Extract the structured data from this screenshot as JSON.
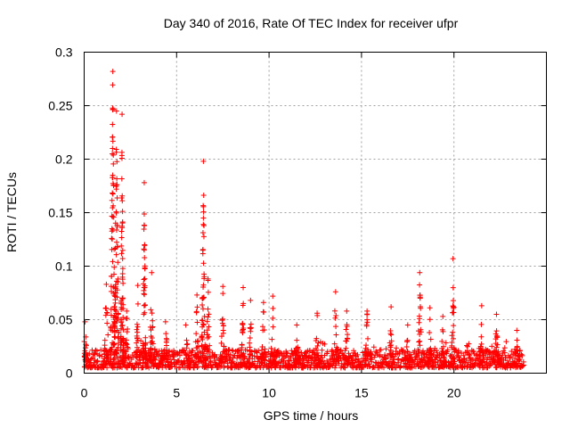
{
  "chart_data": {
    "type": "scatter",
    "title": "Day 340 of 2016, Rate Of TEC Index for receiver ufpr",
    "xlabel": "GPS time / hours",
    "ylabel": "ROTI / TECUs",
    "xlim": [
      0,
      25
    ],
    "ylim": [
      0,
      0.3
    ],
    "xticks": [
      0,
      5,
      10,
      15,
      20
    ],
    "xtick_labels": [
      "0",
      "5",
      "10",
      "15",
      "20"
    ],
    "yticks": [
      0,
      0.05,
      0.1,
      0.15,
      0.2,
      0.25,
      0.3
    ],
    "ytick_labels": [
      "0",
      "0.05",
      "0.1",
      "0.15",
      "0.2",
      "0.25",
      "0.3"
    ],
    "grid": true,
    "marker": "+",
    "series": [
      {
        "name": "ROTI",
        "color": "#ff0000",
        "baseline": {
          "x_start": 0.0,
          "x_end": 23.8,
          "step": 0.05,
          "min": 0.005,
          "max": 0.022
        },
        "bursts": [
          {
            "x": 0.05,
            "width": 0.15,
            "peak": 0.048
          },
          {
            "x": 1.2,
            "width": 0.15,
            "peak": 0.083
          },
          {
            "x": 1.55,
            "width": 0.12,
            "peak": 0.282
          },
          {
            "x": 1.75,
            "width": 0.12,
            "peak": 0.245
          },
          {
            "x": 2.05,
            "width": 0.08,
            "peak": 0.242
          },
          {
            "x": 2.3,
            "width": 0.15,
            "peak": 0.058
          },
          {
            "x": 2.9,
            "width": 0.12,
            "peak": 0.082
          },
          {
            "x": 3.25,
            "width": 0.08,
            "peak": 0.178
          },
          {
            "x": 3.65,
            "width": 0.12,
            "peak": 0.094
          },
          {
            "x": 4.4,
            "width": 0.15,
            "peak": 0.048
          },
          {
            "x": 5.5,
            "width": 0.2,
            "peak": 0.045
          },
          {
            "x": 6.1,
            "width": 0.12,
            "peak": 0.073
          },
          {
            "x": 6.45,
            "width": 0.1,
            "peak": 0.198
          },
          {
            "x": 6.7,
            "width": 0.12,
            "peak": 0.088
          },
          {
            "x": 7.5,
            "width": 0.1,
            "peak": 0.081
          },
          {
            "x": 8.6,
            "width": 0.1,
            "peak": 0.08
          },
          {
            "x": 9.0,
            "width": 0.1,
            "peak": 0.068
          },
          {
            "x": 9.7,
            "width": 0.12,
            "peak": 0.066
          },
          {
            "x": 10.2,
            "width": 0.12,
            "peak": 0.072
          },
          {
            "x": 11.5,
            "width": 0.15,
            "peak": 0.045
          },
          {
            "x": 12.6,
            "width": 0.15,
            "peak": 0.056
          },
          {
            "x": 13.6,
            "width": 0.18,
            "peak": 0.076
          },
          {
            "x": 14.2,
            "width": 0.12,
            "peak": 0.058
          },
          {
            "x": 15.3,
            "width": 0.12,
            "peak": 0.058
          },
          {
            "x": 16.6,
            "width": 0.12,
            "peak": 0.062
          },
          {
            "x": 17.5,
            "width": 0.15,
            "peak": 0.045
          },
          {
            "x": 18.15,
            "width": 0.12,
            "peak": 0.094
          },
          {
            "x": 18.7,
            "width": 0.12,
            "peak": 0.061
          },
          {
            "x": 19.4,
            "width": 0.12,
            "peak": 0.053
          },
          {
            "x": 19.95,
            "width": 0.1,
            "peak": 0.107
          },
          {
            "x": 21.5,
            "width": 0.1,
            "peak": 0.063
          },
          {
            "x": 22.3,
            "width": 0.1,
            "peak": 0.055
          },
          {
            "x": 23.4,
            "width": 0.15,
            "peak": 0.04
          }
        ]
      }
    ]
  }
}
